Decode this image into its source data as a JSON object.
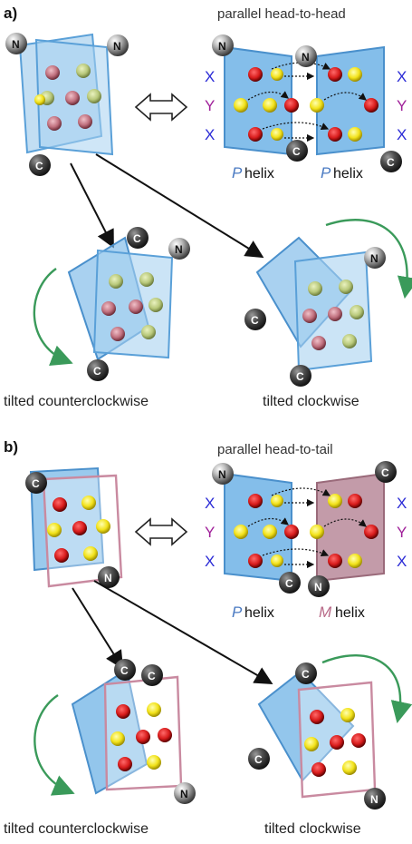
{
  "panel_a": {
    "label": "a)",
    "title": "parallel head-to-head",
    "caption_left": "tilted counterclockwise",
    "caption_right": "tilted clockwise",
    "helix_left_letter": "P",
    "helix_left_word": "helix",
    "helix_right_letter": "P",
    "helix_right_word": "helix",
    "side_left": [
      "X",
      "Y",
      "X"
    ],
    "side_right": [
      "X",
      "Y",
      "X"
    ]
  },
  "panel_b": {
    "label": "b)",
    "title": "parallel head-to-tail",
    "caption_left": "tilted counterclockwise",
    "caption_right": "tilted clockwise",
    "helix_left_letter": "P",
    "helix_left_word": "helix",
    "helix_right_letter": "M",
    "helix_right_word": "helix",
    "side_left": [
      "X",
      "Y",
      "X"
    ],
    "side_right": [
      "X",
      "Y",
      "X"
    ]
  },
  "termini": {
    "n": "N",
    "c": "C"
  },
  "colors": {
    "blue_sheet": "#6fb3e6",
    "pink_frame": "#c98aa0",
    "red_sphere": "#d81c1c",
    "yellow_sphere": "#f2e21a",
    "green_arrow": "#3a9a5a"
  }
}
